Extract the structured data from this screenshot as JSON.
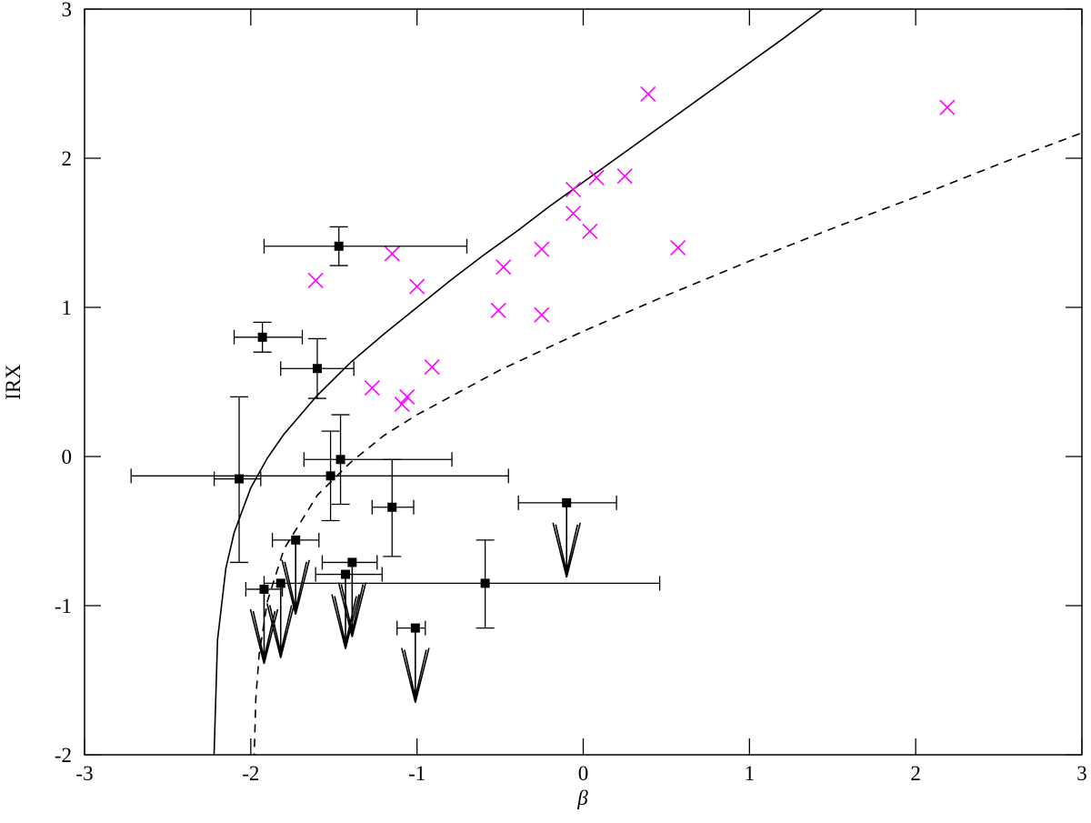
{
  "chart_data": {
    "type": "scatter",
    "xlabel": "β",
    "ylabel": "IRX",
    "xlim": [
      -3,
      3
    ],
    "ylim": [
      -2,
      3
    ],
    "xticks": [
      -3,
      -2,
      -1,
      0,
      1,
      2,
      3
    ],
    "yticks": [
      -2,
      -1,
      0,
      1,
      2,
      3
    ],
    "curves": [
      {
        "color": "#000000",
        "dash": false,
        "x": [
          -2.222,
          -2.2,
          -2.15,
          -2.1,
          -2.0,
          -1.9,
          -1.8,
          -1.6,
          -1.4,
          -1.2,
          -1.0,
          -0.8,
          -0.6,
          -0.4,
          -0.2,
          0,
          0.4,
          0.8,
          1.2,
          1.44
        ],
        "values": [
          -2.04,
          -1.23,
          -0.75,
          -0.51,
          -0.21,
          -0.01,
          0.15,
          0.41,
          0.63,
          0.82,
          1.0,
          1.18,
          1.35,
          1.51,
          1.68,
          1.84,
          2.16,
          2.48,
          2.8,
          3.0
        ]
      },
      {
        "color": "#000000",
        "dash": true,
        "x": [
          -1.985,
          -1.97,
          -1.95,
          -1.9,
          -1.8,
          -1.6,
          -1.4,
          -1.2,
          -1.0,
          -0.5,
          0,
          0.5,
          1.0,
          1.5,
          2.0,
          2.5,
          3.0
        ],
        "values": [
          -2.24,
          -1.63,
          -1.33,
          -0.97,
          -0.62,
          -0.26,
          -0.04,
          0.14,
          0.28,
          0.58,
          0.84,
          1.08,
          1.31,
          1.53,
          1.74,
          1.96,
          2.17
        ]
      }
    ],
    "crosses": {
      "color": "#ff00ff",
      "x": [
        0.39,
        2.19,
        -0.06,
        0.08,
        0.25,
        -0.06,
        0.04,
        0.57,
        -0.25,
        -0.48,
        -1.15,
        -1.61,
        -1.0,
        -0.51,
        -0.25,
        -0.91,
        -1.27,
        -1.06,
        -1.09
      ],
      "values": [
        2.43,
        2.34,
        1.79,
        1.87,
        1.88,
        1.63,
        1.51,
        1.4,
        1.39,
        1.27,
        1.36,
        1.18,
        1.14,
        0.98,
        0.95,
        0.6,
        0.46,
        0.4,
        0.35
      ]
    },
    "squares": {
      "color": "#000000",
      "x": [
        -1.47,
        -1.93,
        -1.6,
        -2.07,
        -1.52,
        -1.46,
        -1.15,
        -0.1,
        -1.73,
        -1.39,
        -1.43,
        -0.59,
        -1.82,
        -1.92,
        -1.01
      ],
      "values": [
        1.41,
        0.8,
        0.59,
        -0.15,
        -0.13,
        -0.02,
        -0.34,
        -0.31,
        -0.56,
        -0.71,
        -0.79,
        -0.85,
        -0.85,
        -0.89,
        -1.15
      ],
      "x_low": [
        -1.92,
        -2.1,
        -1.82,
        -2.22,
        -2.72,
        -1.68,
        -1.27,
        -0.39,
        -1.87,
        -1.57,
        -1.61,
        -1.92,
        null,
        -2.03,
        -1.12
      ],
      "x_high": [
        -0.7,
        -1.69,
        -1.38,
        -1.94,
        -0.45,
        -0.79,
        -1.02,
        0.2,
        -1.59,
        -1.24,
        -1.21,
        0.46,
        null,
        -1.81,
        -0.95
      ],
      "y_low": [
        1.28,
        0.7,
        0.39,
        -0.71,
        -0.43,
        -0.32,
        -0.67,
        null,
        null,
        null,
        null,
        -1.15,
        null,
        null,
        null
      ],
      "y_high": [
        1.54,
        0.9,
        0.79,
        0.4,
        0.17,
        0.28,
        -0.02,
        null,
        null,
        null,
        null,
        -0.56,
        null,
        null,
        null
      ],
      "upper_limit": [
        false,
        false,
        false,
        false,
        false,
        false,
        false,
        true,
        true,
        true,
        true,
        false,
        true,
        true,
        true
      ]
    }
  }
}
